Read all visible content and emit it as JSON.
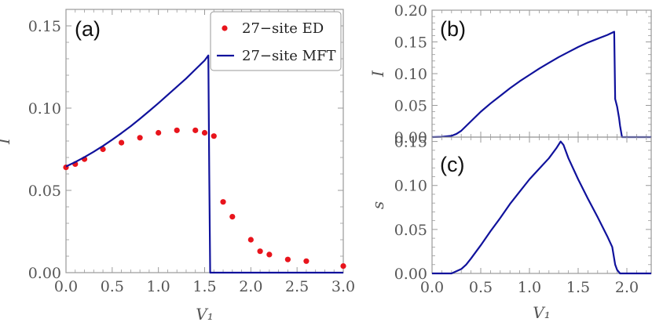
{
  "colors": {
    "ed": "#e8141c",
    "mft": "#10129c",
    "axis": "#9a9a9a",
    "text": "#555555"
  },
  "chart_data": [
    {
      "type": "line",
      "panel_label": "(a)",
      "xlabel": "V₁",
      "ylabel": "I",
      "xlim": [
        0,
        3.0
      ],
      "ylim": [
        0,
        0.16
      ],
      "x_ticks": [
        0.0,
        0.5,
        1.0,
        1.5,
        2.0,
        2.5,
        3.0
      ],
      "x_tick_labels": [
        "0.0",
        "0.5",
        "1.0",
        "1.5",
        "2.0",
        "2.5",
        "3.0"
      ],
      "y_ticks": [
        0.0,
        0.05,
        0.1,
        0.15
      ],
      "y_tick_labels": [
        "0.00",
        "0.05",
        "0.10",
        "0.15"
      ],
      "legend_position": "top-right",
      "series": [
        {
          "name": "27−site ED",
          "style": "points",
          "x": [
            0.0,
            0.1,
            0.2,
            0.4,
            0.6,
            0.8,
            1.0,
            1.2,
            1.4,
            1.5,
            1.6,
            1.7,
            1.8,
            2.0,
            2.1,
            2.2,
            2.4,
            2.6,
            3.0
          ],
          "y": [
            0.064,
            0.066,
            0.069,
            0.075,
            0.079,
            0.082,
            0.085,
            0.0865,
            0.0865,
            0.085,
            0.083,
            0.043,
            0.034,
            0.02,
            0.013,
            0.011,
            0.008,
            0.007,
            0.004
          ]
        },
        {
          "name": "27−site MFT",
          "style": "line",
          "x": [
            0.0,
            0.1,
            0.2,
            0.3,
            0.4,
            0.5,
            0.6,
            0.7,
            0.8,
            0.9,
            1.0,
            1.1,
            1.2,
            1.3,
            1.4,
            1.5,
            1.54,
            1.55,
            1.56,
            3.0
          ],
          "y": [
            0.0645,
            0.0672,
            0.0702,
            0.0735,
            0.077,
            0.0808,
            0.0848,
            0.089,
            0.0935,
            0.0982,
            0.103,
            0.108,
            0.113,
            0.118,
            0.1235,
            0.129,
            0.132,
            0.06,
            0.0,
            0.0
          ]
        }
      ]
    },
    {
      "type": "line",
      "panel_label": "(b)",
      "xlabel": "",
      "ylabel": "I",
      "xlim": [
        0,
        2.25
      ],
      "ylim": [
        0,
        0.2
      ],
      "x_ticks": [
        0.0,
        0.5,
        1.0,
        1.5,
        2.0
      ],
      "y_ticks": [
        0.0,
        0.05,
        0.1,
        0.15,
        0.2
      ],
      "y_tick_labels": [
        "0.00",
        "0.05",
        "0.10",
        "0.15",
        "0.20"
      ],
      "series": [
        {
          "style": "line",
          "x": [
            0.0,
            0.1,
            0.2,
            0.25,
            0.3,
            0.4,
            0.5,
            0.6,
            0.7,
            0.8,
            0.9,
            1.0,
            1.1,
            1.2,
            1.3,
            1.4,
            1.5,
            1.6,
            1.7,
            1.8,
            1.87,
            1.88,
            1.9,
            1.92,
            1.93,
            1.95,
            2.25
          ],
          "y": [
            0.0,
            0.0005,
            0.002,
            0.005,
            0.01,
            0.025,
            0.04,
            0.053,
            0.065,
            0.077,
            0.088,
            0.098,
            0.108,
            0.117,
            0.126,
            0.134,
            0.142,
            0.149,
            0.155,
            0.161,
            0.166,
            0.06,
            0.048,
            0.03,
            0.018,
            0.0,
            0.0
          ]
        }
      ]
    },
    {
      "type": "line",
      "panel_label": "(c)",
      "xlabel": "V₁",
      "ylabel": "s",
      "xlim": [
        0,
        2.25
      ],
      "ylim": [
        0,
        0.155
      ],
      "x_ticks": [
        0.0,
        0.5,
        1.0,
        1.5,
        2.0
      ],
      "x_tick_labels": [
        "0.0",
        "0.5",
        "1.0",
        "1.5",
        "2.0"
      ],
      "y_ticks": [
        0.0,
        0.05,
        0.1,
        0.15
      ],
      "y_tick_labels": [
        "0.00",
        "0.05",
        "0.10",
        "0.15"
      ],
      "series": [
        {
          "style": "line",
          "x": [
            0.0,
            0.1,
            0.2,
            0.3,
            0.35,
            0.4,
            0.5,
            0.6,
            0.7,
            0.8,
            0.9,
            1.0,
            1.1,
            1.2,
            1.28,
            1.32,
            1.35,
            1.4,
            1.5,
            1.6,
            1.7,
            1.8,
            1.85,
            1.88,
            1.9,
            1.93,
            2.0,
            2.25
          ],
          "y": [
            0.0,
            0.0,
            0.0,
            0.005,
            0.01,
            0.017,
            0.032,
            0.048,
            0.063,
            0.079,
            0.093,
            0.107,
            0.119,
            0.131,
            0.143,
            0.15,
            0.146,
            0.131,
            0.107,
            0.085,
            0.064,
            0.042,
            0.03,
            0.01,
            0.004,
            0.0,
            0.0,
            0.0
          ]
        }
      ]
    }
  ]
}
